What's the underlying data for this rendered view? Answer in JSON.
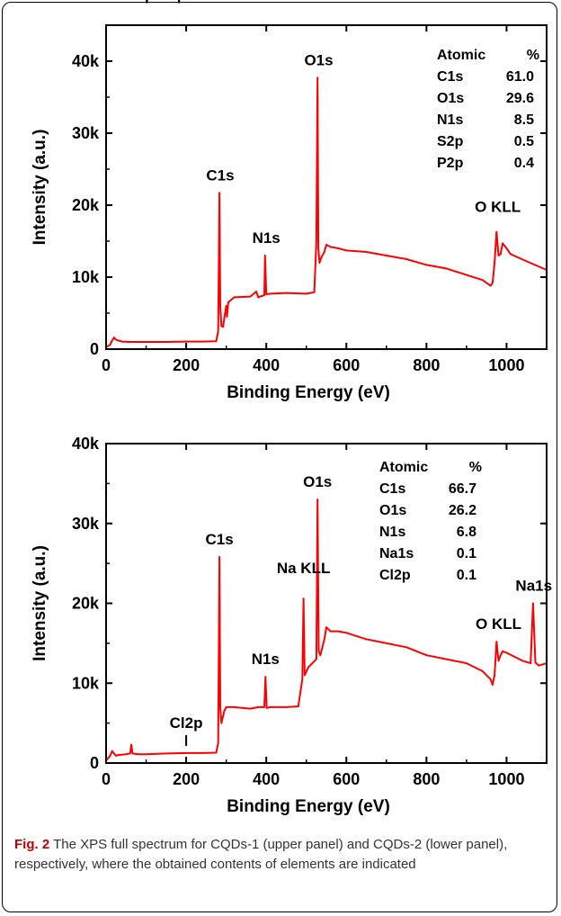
{
  "chart_data": [
    {
      "type": "line",
      "xlabel": "Binding Energy (eV)",
      "ylabel": "Intensity (a.u.)",
      "xlim": [
        0,
        1100
      ],
      "ylim": [
        0,
        45000
      ],
      "xticks": [
        0,
        200,
        400,
        600,
        800,
        1000
      ],
      "xtick_labels": [
        "0",
        "200",
        "400",
        "600",
        "800",
        "1000"
      ],
      "yticks": [
        0,
        10000,
        20000,
        30000,
        40000
      ],
      "ytick_labels": [
        "0",
        "10k",
        "20k",
        "30k",
        "40k"
      ],
      "color": "#ff0000",
      "series": [
        {
          "x": [
            0,
            10,
            15,
            20,
            25,
            30,
            40,
            60,
            100,
            150,
            200,
            240,
            275,
            280,
            283,
            285,
            288,
            292,
            300,
            302,
            305,
            320,
            360,
            375,
            380,
            395,
            397,
            400,
            410,
            450,
            500,
            520,
            525,
            528,
            530,
            533,
            538,
            545,
            550,
            560,
            580,
            600,
            650,
            700,
            750,
            800,
            850,
            900,
            940,
            960,
            965,
            970,
            975,
            980,
            985,
            990,
            1000,
            1010,
            1050,
            1100
          ],
          "y": [
            300,
            600,
            1200,
            1600,
            1300,
            1200,
            1050,
            1000,
            1000,
            1000,
            1050,
            1050,
            1100,
            2500,
            21700,
            6000,
            3200,
            3100,
            6000,
            4500,
            6500,
            7200,
            7300,
            8000,
            7200,
            7500,
            13000,
            7600,
            7700,
            7800,
            7700,
            7900,
            15000,
            37700,
            14000,
            12000,
            12800,
            13500,
            14500,
            14200,
            14000,
            13700,
            13500,
            13000,
            12500,
            11700,
            11200,
            10300,
            9600,
            8800,
            9200,
            12000,
            16300,
            13000,
            13200,
            14700,
            14000,
            13200,
            12200,
            11000
          ]
        }
      ],
      "annotations": [
        {
          "text": "P2p",
          "x": 85
        },
        {
          "text": "S2p",
          "x": 165
        },
        {
          "text": "C1s",
          "x": 285
        },
        {
          "text": "N1s",
          "x": 400
        },
        {
          "text": "O1s",
          "x": 531
        },
        {
          "text": "O KLL",
          "x": 978
        }
      ],
      "table": {
        "header": [
          "Atomic",
          "%"
        ],
        "rows": [
          [
            "C1s",
            "61.0"
          ],
          [
            "O1s",
            "29.6"
          ],
          [
            "N1s",
            "8.5"
          ],
          [
            "S2p",
            "0.5"
          ],
          [
            "P2p",
            "0.4"
          ]
        ]
      }
    },
    {
      "type": "line",
      "xlabel": "Binding Energy (eV)",
      "ylabel": "Intensity (a.u.)",
      "xlim": [
        0,
        1100
      ],
      "ylim": [
        0,
        40000
      ],
      "xticks": [
        0,
        200,
        400,
        600,
        800,
        1000
      ],
      "xtick_labels": [
        "0",
        "200",
        "400",
        "600",
        "800",
        "1000"
      ],
      "yticks": [
        0,
        10000,
        20000,
        30000,
        40000
      ],
      "ytick_labels": [
        "0",
        "10k",
        "20k",
        "30k",
        "40k"
      ],
      "color": "#ff0000",
      "series": [
        {
          "x": [
            0,
            10,
            15,
            20,
            25,
            30,
            50,
            60,
            63,
            66,
            80,
            100,
            150,
            200,
            240,
            275,
            280,
            283,
            285,
            288,
            295,
            300,
            320,
            360,
            380,
            395,
            398,
            401,
            410,
            450,
            480,
            490,
            493,
            496,
            505,
            515,
            525,
            528,
            531,
            535,
            545,
            550,
            560,
            580,
            600,
            650,
            700,
            750,
            800,
            850,
            900,
            940,
            960,
            965,
            970,
            975,
            980,
            985,
            990,
            1000,
            1040,
            1060,
            1066,
            1072,
            1080,
            1100
          ],
          "y": [
            300,
            900,
            1500,
            1200,
            900,
            1000,
            1100,
            1200,
            2300,
            1200,
            1100,
            1100,
            1200,
            1250,
            1250,
            1300,
            2500,
            25800,
            7000,
            5000,
            6500,
            7000,
            7000,
            6800,
            7000,
            7000,
            10800,
            6900,
            7000,
            7000,
            7100,
            10500,
            20600,
            11000,
            12000,
            12500,
            13000,
            33000,
            14000,
            13500,
            15500,
            17000,
            16500,
            16500,
            16300,
            15500,
            15000,
            14500,
            13500,
            13000,
            12500,
            11500,
            10500,
            9800,
            11000,
            15200,
            12800,
            13500,
            14000,
            13800,
            12800,
            12500,
            20000,
            12600,
            12200,
            12500
          ]
        }
      ],
      "annotations": [
        {
          "text": "Cl2p",
          "x": 200
        },
        {
          "text": "C1s",
          "x": 283
        },
        {
          "text": "N1s",
          "x": 398
        },
        {
          "text": "Na KLL",
          "x": 493
        },
        {
          "text": "O1s",
          "x": 528
        },
        {
          "text": "O KLL",
          "x": 980
        },
        {
          "text": "Na1s",
          "x": 1068
        }
      ],
      "table": {
        "header": [
          "Atomic",
          "%"
        ],
        "rows": [
          [
            "C1s",
            "66.7"
          ],
          [
            "O1s",
            "26.2"
          ],
          [
            "N1s",
            "6.8"
          ],
          [
            "Na1s",
            "0.1"
          ],
          [
            "Cl2p",
            "0.1"
          ]
        ]
      }
    }
  ],
  "caption": {
    "label": "Fig. 2",
    "text": " The XPS full spectrum for CQDs-1 (upper panel) and CQDs-2 (lower panel), respectively, where the obtained contents of elements are indicated"
  }
}
